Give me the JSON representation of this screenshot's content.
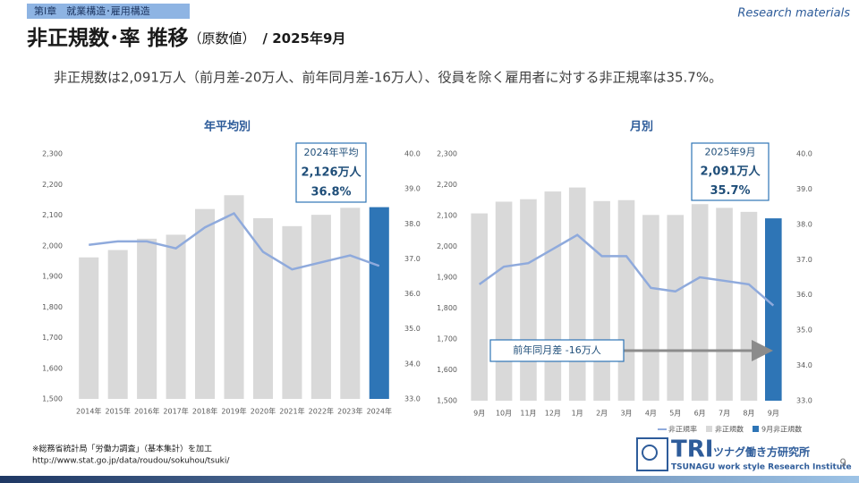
{
  "header": {
    "chapter": "第Ⅰ章　就業構造･雇用構造",
    "tag": "Research materials",
    "title": "非正規数･率 推移",
    "title_note": "（原数値）",
    "title_date": "/ 2025年9月",
    "summary": "非正規数は2,091万人（前月差-20万人、前年同月差-16万人）、役員を除く雇用者に対する非正規率は35.7%。"
  },
  "chart_data": [
    {
      "type": "bar",
      "title": "年平均別",
      "categories": [
        "2014年",
        "2015年",
        "2016年",
        "2017年",
        "2018年",
        "2019年",
        "2020年",
        "2021年",
        "2022年",
        "2023年",
        "2024年"
      ],
      "series": [
        {
          "color": "#d9d9d9",
          "values": [
            1962,
            1986,
            2023,
            2036,
            2120,
            2165,
            2090,
            2064,
            2101,
            2124,
            null
          ]
        },
        {
          "color": "#2e75b6",
          "values": [
            null,
            null,
            null,
            null,
            null,
            null,
            null,
            null,
            null,
            null,
            2126
          ]
        },
        {
          "type": "line",
          "axis": "y2",
          "color": "#8faadc",
          "values": [
            37.4,
            37.5,
            37.5,
            37.3,
            37.9,
            38.3,
            37.2,
            36.7,
            36.9,
            37.1,
            36.8
          ]
        }
      ],
      "ylim": [
        1500,
        2300
      ],
      "yticks": [
        {
          "value": 1500,
          "label": "1,500"
        },
        {
          "value": 1600,
          "label": "1,600"
        },
        {
          "value": 1700,
          "label": "1,700"
        },
        {
          "value": 1800,
          "label": "1,800"
        },
        {
          "value": 1900,
          "label": "1,900"
        },
        {
          "value": 2000,
          "label": "2,000"
        },
        {
          "value": 2100,
          "label": "2,100"
        },
        {
          "value": 2200,
          "label": "2,200"
        },
        {
          "value": 2300,
          "label": "2,300"
        }
      ],
      "y2lim": [
        33,
        40
      ],
      "y2ticks": [
        {
          "value": 33,
          "label": "33.0"
        },
        {
          "value": 34,
          "label": "34.0"
        },
        {
          "value": 35,
          "label": "35.0"
        },
        {
          "value": 36,
          "label": "36.0"
        },
        {
          "value": 37,
          "label": "37.0"
        },
        {
          "value": 38,
          "label": "38.0"
        },
        {
          "value": 39,
          "label": "39.0"
        },
        {
          "value": 40,
          "label": "40.0"
        }
      ],
      "annotations": [
        {
          "lines": [
            "2024年平均",
            "2,126万人",
            "36.8%"
          ]
        }
      ]
    },
    {
      "type": "bar",
      "title": "月別",
      "categories": [
        "9月",
        "10月",
        "11月",
        "12月",
        "1月",
        "2月",
        "3月",
        "4月",
        "5月",
        "6月",
        "7月",
        "8月",
        "9月"
      ],
      "series": [
        {
          "type": "line",
          "axis": "y2",
          "name": "非正規率",
          "color": "#8faadc",
          "values": [
            36.3,
            36.8,
            36.9,
            37.3,
            37.7,
            37.1,
            37.1,
            36.2,
            36.1,
            36.5,
            36.4,
            36.3,
            35.7
          ]
        },
        {
          "name": "非正規数",
          "color": "#d9d9d9",
          "values": [
            2107,
            2145,
            2153,
            2178,
            2191,
            2147,
            2150,
            2102,
            2102,
            2137,
            2125,
            2112,
            null
          ]
        },
        {
          "name": "9月非正規数",
          "color": "#2e75b6",
          "values": [
            null,
            null,
            null,
            null,
            null,
            null,
            null,
            null,
            null,
            null,
            null,
            null,
            2091
          ]
        }
      ],
      "ylim": [
        1500,
        2300
      ],
      "yticks": [
        {
          "value": 1500,
          "label": "1,500"
        },
        {
          "value": 1600,
          "label": "1,600"
        },
        {
          "value": 1700,
          "label": "1,700"
        },
        {
          "value": 1800,
          "label": "1,800"
        },
        {
          "value": 1900,
          "label": "1,900"
        },
        {
          "value": 2000,
          "label": "2,000"
        },
        {
          "value": 2100,
          "label": "2,100"
        },
        {
          "value": 2200,
          "label": "2,200"
        },
        {
          "value": 2300,
          "label": "2,300"
        }
      ],
      "y2lim": [
        33,
        40
      ],
      "y2ticks": [
        {
          "value": 33,
          "label": "33.0"
        },
        {
          "value": 34,
          "label": "34.0"
        },
        {
          "value": 35,
          "label": "35.0"
        },
        {
          "value": 36,
          "label": "36.0"
        },
        {
          "value": 37,
          "label": "37.0"
        },
        {
          "value": 38,
          "label": "38.0"
        },
        {
          "value": 39,
          "label": "39.0"
        },
        {
          "value": 40,
          "label": "40.0"
        }
      ],
      "annotations": [
        {
          "lines": [
            "2025年9月",
            "2,091万人",
            "35.7%"
          ]
        },
        {
          "lines": [
            "前年同月差  -16万人"
          ]
        }
      ]
    }
  ],
  "footer": {
    "source": "※総務省統計局「労働力調査」（基本集計）を加工",
    "url": "http://www.stat.go.jp/data/roudou/sokuhou/tsuki/",
    "logo": "TRI",
    "logo_name": "ツナグ働き方研究所",
    "logo_sub": "TSUNAGU work style Research Institute",
    "page": "9"
  }
}
